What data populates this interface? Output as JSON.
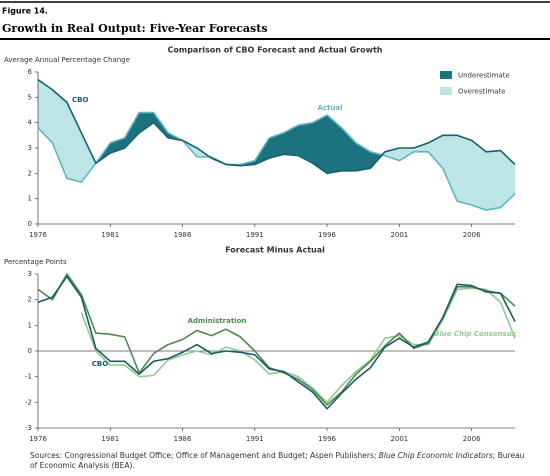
{
  "header": {
    "figure": "Figure 14.",
    "title": "Growth in Real Output: Five-Year Forecasts"
  },
  "chart_data": [
    {
      "type": "area-difference",
      "title": "Comparison of CBO Forecast and Actual Growth",
      "y_label": "Average Annual Percentage Change",
      "x": [
        1976,
        1977,
        1978,
        1979,
        1980,
        1981,
        1982,
        1983,
        1984,
        1985,
        1986,
        1987,
        1988,
        1989,
        1990,
        1991,
        1992,
        1993,
        1994,
        1995,
        1996,
        1997,
        1998,
        1999,
        2000,
        2001,
        2002,
        2003,
        2004,
        2005,
        2006,
        2007,
        2008,
        2009
      ],
      "xlim": [
        1976,
        2009
      ],
      "xticks": [
        1976,
        1981,
        1986,
        1991,
        1996,
        2001,
        2006
      ],
      "ylim": [
        0,
        6
      ],
      "yticks": [
        0,
        1,
        2,
        3,
        4,
        5,
        6
      ],
      "series": [
        {
          "name": "CBO",
          "color": "#17606b",
          "values": [
            5.7,
            5.3,
            4.8,
            3.6,
            2.4,
            2.8,
            3.0,
            3.6,
            4.0,
            3.4,
            3.3,
            3.0,
            2.6,
            2.35,
            2.3,
            2.35,
            2.6,
            2.75,
            2.7,
            2.4,
            2.0,
            2.1,
            2.1,
            2.2,
            2.85,
            3.0,
            3.0,
            3.2,
            3.5,
            3.5,
            3.3,
            2.85,
            2.9,
            2.35
          ]
        },
        {
          "name": "Actual",
          "color": "#5fb7be",
          "values": [
            3.8,
            3.2,
            1.8,
            1.65,
            2.4,
            3.2,
            3.4,
            4.4,
            4.4,
            3.6,
            3.3,
            2.65,
            2.65,
            2.35,
            2.35,
            2.5,
            3.4,
            3.6,
            3.9,
            4.0,
            4.3,
            3.8,
            3.2,
            2.85,
            2.7,
            2.5,
            2.85,
            2.85,
            2.2,
            0.9,
            0.75,
            0.55,
            0.65,
            1.2
          ]
        }
      ],
      "fill_legend": [
        {
          "name": "Underestimate",
          "color": "#1d7280"
        },
        {
          "name": "Overestimate",
          "color": "#bde4e6"
        }
      ]
    },
    {
      "type": "line",
      "title": "Forecast Minus Actual",
      "y_label": "Percentage Points",
      "x": [
        1976,
        1977,
        1978,
        1979,
        1980,
        1981,
        1982,
        1983,
        1984,
        1985,
        1986,
        1987,
        1988,
        1989,
        1990,
        1991,
        1992,
        1993,
        1994,
        1995,
        1996,
        1997,
        1998,
        1999,
        2000,
        2001,
        2002,
        2003,
        2004,
        2005,
        2006,
        2007,
        2008,
        2009
      ],
      "xlim": [
        1976,
        2009
      ],
      "xticks": [
        1976,
        1981,
        1986,
        1991,
        1996,
        2001,
        2006
      ],
      "ylim": [
        -3,
        3
      ],
      "yticks": [
        -3,
        -2,
        -1,
        0,
        1,
        2,
        3
      ],
      "series": [
        {
          "name": "CBO",
          "color": "#1b5c66",
          "values": [
            1.9,
            2.1,
            2.9,
            2.1,
            0.1,
            -0.4,
            -0.4,
            -0.9,
            -0.4,
            -0.3,
            -0.05,
            0.25,
            -0.1,
            0,
            -0.05,
            -0.15,
            -0.7,
            -0.8,
            -1.2,
            -1.6,
            -2.25,
            -1.65,
            -1.1,
            -0.65,
            0.15,
            0.5,
            0.15,
            0.35,
            1.3,
            2.6,
            2.55,
            2.3,
            2.25,
            1.15
          ]
        },
        {
          "name": "Administration",
          "color": "#4d8a4d",
          "values": [
            2.4,
            2.0,
            3.0,
            2.2,
            0.7,
            0.65,
            0.55,
            -0.85,
            -0.1,
            0.25,
            0.45,
            0.8,
            0.6,
            0.85,
            0.55,
            0.0,
            -0.65,
            -0.85,
            -1.1,
            -1.5,
            -2.1,
            -1.6,
            -0.9,
            -0.4,
            0.2,
            0.7,
            0.1,
            0.3,
            1.3,
            2.5,
            2.5,
            2.35,
            2.25,
            1.75
          ]
        },
        {
          "name": "Blue Chip Consensus",
          "color": "#92c992",
          "values": [
            null,
            null,
            null,
            1.5,
            0.0,
            -0.55,
            -0.55,
            -1.0,
            -0.95,
            -0.35,
            -0.15,
            0.0,
            -0.15,
            0.15,
            0.0,
            -0.35,
            -0.9,
            -0.8,
            -1.0,
            -1.45,
            -2.0,
            -1.35,
            -0.8,
            -0.35,
            0.5,
            0.6,
            0.25,
            0.25,
            1.2,
            2.4,
            2.45,
            2.4,
            1.9,
            0.5
          ]
        }
      ]
    }
  ],
  "footer": {
    "sources": [
      "Sources: Congressional Budget Office; Office of Management and Budget; Aspen Publishers; ",
      "Blue Chip Economic Indicators",
      "; Bureau of Economic Analysis (BEA)."
    ]
  }
}
